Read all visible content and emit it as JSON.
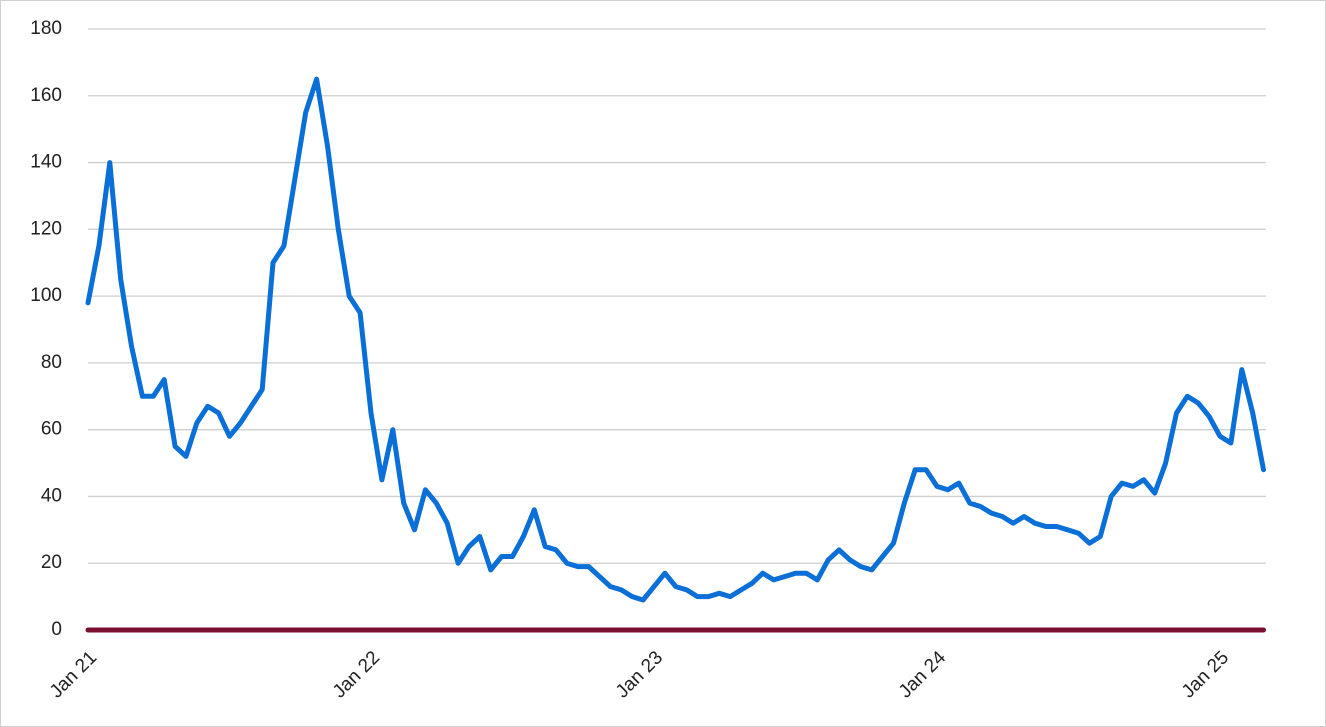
{
  "chart_data": {
    "type": "line",
    "categories": [
      "Jan 21",
      null,
      null,
      null,
      null,
      null,
      null,
      null,
      null,
      null,
      null,
      null,
      null,
      null,
      null,
      null,
      null,
      null,
      null,
      null,
      null,
      null,
      null,
      null,
      null,
      null,
      "Jan 22",
      null,
      null,
      null,
      null,
      null,
      null,
      null,
      null,
      null,
      null,
      null,
      null,
      null,
      null,
      null,
      null,
      null,
      null,
      null,
      null,
      null,
      null,
      null,
      null,
      null,
      "Jan 23",
      null,
      null,
      null,
      null,
      null,
      null,
      null,
      null,
      null,
      null,
      null,
      null,
      null,
      null,
      null,
      null,
      null,
      null,
      null,
      null,
      null,
      null,
      null,
      null,
      null,
      "Jan 24",
      null,
      null,
      null,
      null,
      null,
      null,
      null,
      null,
      null,
      null,
      null,
      null,
      null,
      null,
      null,
      null,
      null,
      null,
      null,
      null,
      null,
      null,
      null,
      null,
      null,
      "Jan 25",
      null,
      null,
      null,
      null
    ],
    "series": [
      {
        "color": "#0a6fd6",
        "values": [
          98,
          115,
          140,
          105,
          85,
          70,
          70,
          75,
          55,
          52,
          62,
          67,
          65,
          58,
          62,
          67,
          72,
          110,
          115,
          135,
          155,
          165,
          145,
          120,
          100,
          95,
          65,
          45,
          60,
          38,
          30,
          42,
          38,
          32,
          20,
          25,
          28,
          18,
          22,
          22,
          28,
          36,
          25,
          24,
          20,
          19,
          19,
          16,
          13,
          12,
          10,
          9,
          13,
          17,
          13,
          12,
          10,
          10,
          11,
          10,
          12,
          14,
          17,
          15,
          16,
          17,
          17,
          15,
          21,
          24,
          21,
          19,
          18,
          22,
          26,
          38,
          48,
          48,
          43,
          42,
          44,
          38,
          37,
          35,
          34,
          32,
          34,
          32,
          31,
          31,
          30,
          29,
          26,
          28,
          40,
          44,
          43,
          45,
          41,
          50,
          65,
          70,
          68,
          64,
          58,
          56,
          78,
          65,
          48
        ]
      },
      {
        "color": "#7a0f30",
        "values": [
          0,
          0,
          0,
          0,
          0,
          0,
          0,
          0,
          0,
          0,
          0,
          0,
          0,
          0,
          0,
          0,
          0,
          0,
          0,
          0,
          0,
          0,
          0,
          0,
          0,
          0,
          0,
          0,
          0,
          0,
          0,
          0,
          0,
          0,
          0,
          0,
          0,
          0,
          0,
          0,
          0,
          0,
          0,
          0,
          0,
          0,
          0,
          0,
          0,
          0,
          0,
          0,
          0,
          0,
          0,
          0,
          0,
          0,
          0,
          0,
          0,
          0,
          0,
          0,
          0,
          0,
          0,
          0,
          0,
          0,
          0,
          0,
          0,
          0,
          0,
          0,
          0,
          0,
          0,
          0,
          0,
          0,
          0,
          0,
          0,
          0,
          0,
          0,
          0,
          0,
          0,
          0,
          0,
          0,
          0,
          0,
          0,
          0,
          0,
          0,
          0,
          0,
          0,
          0,
          0,
          0,
          0,
          0,
          0
        ]
      }
    ],
    "ylim": [
      0,
      180
    ],
    "yticks": [
      0,
      20,
      40,
      60,
      80,
      100,
      120,
      140,
      160,
      180
    ],
    "grid": true
  }
}
